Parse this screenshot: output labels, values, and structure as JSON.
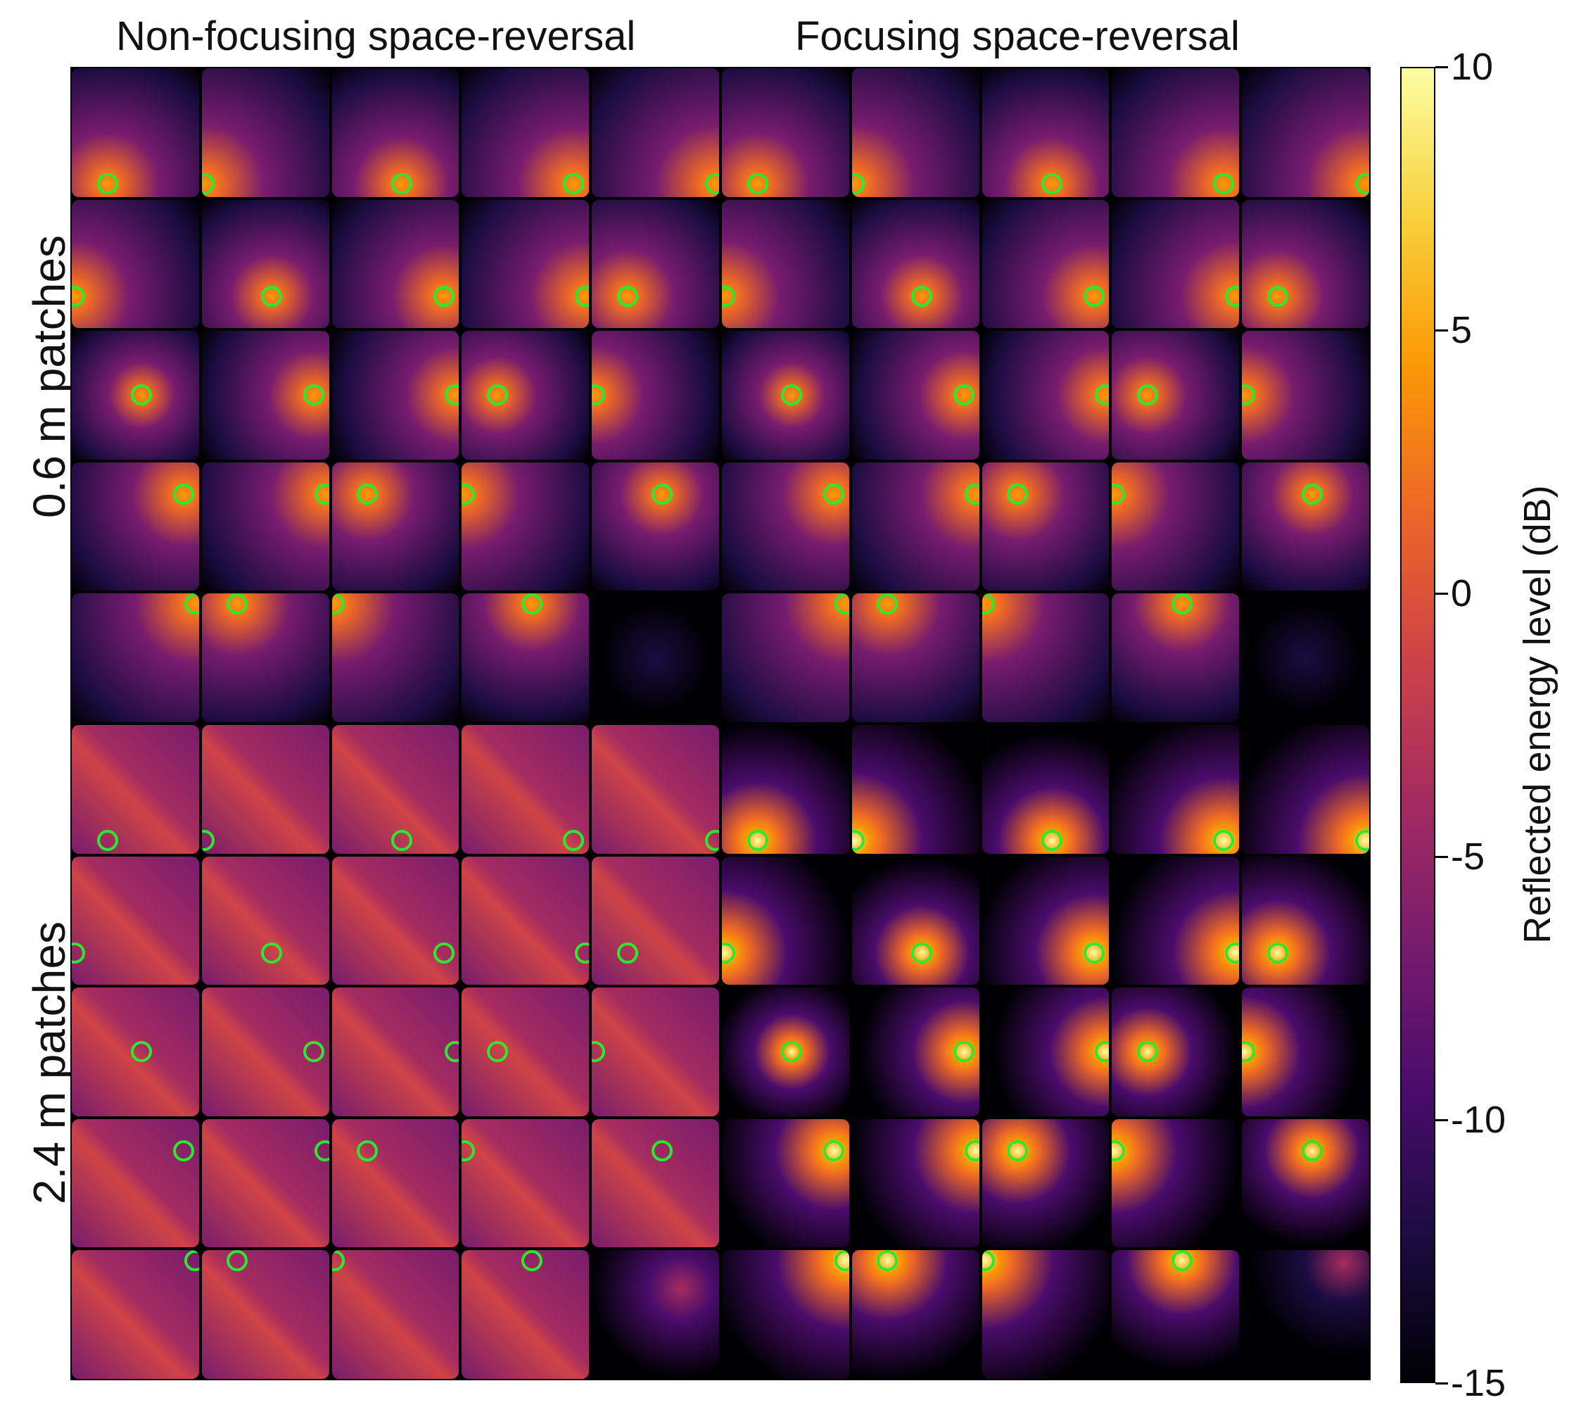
{
  "chart_data": {
    "type": "heatmap",
    "column_groups": [
      "Non-focusing space-reversal",
      "Focusing space-reversal"
    ],
    "row_groups": [
      "0.6 m patches",
      "2.4 m patches"
    ],
    "grid": {
      "rows_per_group": 5,
      "cols_per_group": 5
    },
    "colorbar": {
      "label": "Reflected energy level (dB)",
      "range": [
        -15,
        10
      ],
      "ticks": [
        10,
        5,
        0,
        -5,
        -10,
        -15
      ],
      "colormap": [
        "#000004",
        "#1b0c41",
        "#4a0c6b",
        "#781c6d",
        "#a52c60",
        "#cf4446",
        "#ed6925",
        "#fb9b06",
        "#f7d13d",
        "#fcffa4"
      ]
    },
    "marker_color": "#2ee82e"
  }
}
